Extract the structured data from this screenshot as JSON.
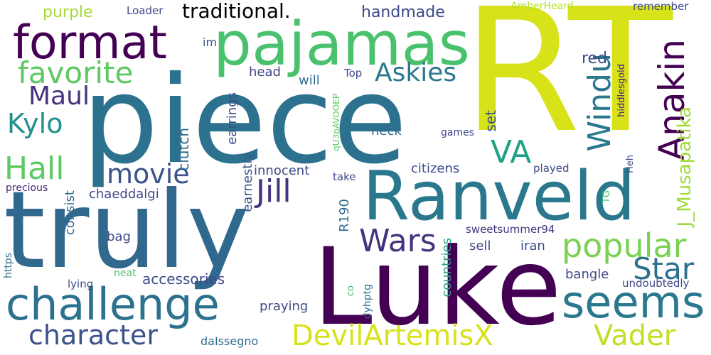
{
  "colors": {
    "background": "#ffffff",
    "palette": [
      "#440154",
      "#46337e",
      "#365c8d",
      "#277f8e",
      "#1fa187",
      "#4ac16d",
      "#a0da39",
      "#d8e219"
    ]
  },
  "words": [
    {
      "id": "RT",
      "text": "RT",
      "color": "#d8e219"
    },
    {
      "id": "piece",
      "text": "piece",
      "color": "#2c728e"
    },
    {
      "id": "truly",
      "text": "truly",
      "color": "#31688e"
    },
    {
      "id": "Luke",
      "text": "Luke",
      "color": "#440154"
    },
    {
      "id": "Ranveld",
      "text": "Ranveld",
      "color": "#2a788e"
    },
    {
      "id": "pajamas",
      "text": "pajamas",
      "color": "#4ac16d"
    },
    {
      "id": "format",
      "text": "format",
      "color": "#440154"
    },
    {
      "id": "challenge",
      "text": "challenge",
      "color": "#2c728e"
    },
    {
      "id": "seems",
      "text": "seems",
      "color": "#2a788e"
    },
    {
      "id": "favorite",
      "text": "favorite",
      "color": "#5ec962"
    },
    {
      "id": "DevilArtemisX",
      "text": "DevilArtemisX",
      "color": "#d8e219"
    },
    {
      "id": "Vader",
      "text": "Vader",
      "color": "#c2df23"
    },
    {
      "id": "character",
      "text": "character",
      "color": "#3b528b"
    },
    {
      "id": "popular",
      "text": "popular",
      "color": "#7ad151"
    },
    {
      "id": "Star",
      "text": "Star",
      "color": "#2c728e"
    },
    {
      "id": "Anakin",
      "text": "Anakin",
      "color": "#440154"
    },
    {
      "id": "Windu",
      "text": "Windu",
      "color": "#2a788e"
    },
    {
      "id": "Wars",
      "text": "Wars",
      "color": "#46337e"
    },
    {
      "id": "Jill",
      "text": "Jill",
      "color": "#46337e"
    },
    {
      "id": "VA",
      "text": "VA",
      "color": "#1fa187"
    },
    {
      "id": "Askies",
      "text": "Askies",
      "color": "#2a788e"
    },
    {
      "id": "Hall",
      "text": "Hall",
      "color": "#5ec962"
    },
    {
      "id": "movie",
      "text": "movie",
      "color": "#3b528b"
    },
    {
      "id": "Maul",
      "text": "Maul",
      "color": "#46337e"
    },
    {
      "id": "Kylo",
      "text": "Kylo",
      "color": "#21918c"
    },
    {
      "id": "J_Musapatika",
      "text": "J_Musapatika",
      "color": "#a0da39"
    },
    {
      "id": "traditional",
      "text": "traditional.",
      "color": "#3ba37c"
    },
    {
      "id": "handmade",
      "text": "handmade",
      "color": "#3e4a89"
    },
    {
      "id": "purple",
      "text": "purple",
      "color": "#a5db36"
    },
    {
      "id": "red",
      "text": "red",
      "color": "#3e4a89"
    },
    {
      "id": "Loader",
      "text": "Loader",
      "color": "#3e4a89"
    },
    {
      "id": "AmberHeard",
      "text": "AmberHeard",
      "color": "#b5de2b"
    },
    {
      "id": "remember",
      "text": "remember",
      "color": "#3e4a89"
    },
    {
      "id": "im",
      "text": "im",
      "color": "#3b528b"
    },
    {
      "id": "head",
      "text": "head",
      "color": "#414487"
    },
    {
      "id": "will",
      "text": "will",
      "color": "#2f6c8e"
    },
    {
      "id": "Top",
      "text": "Top",
      "color": "#3e4a89"
    },
    {
      "id": "hiddlesgold",
      "text": "hiddlesgold",
      "color": "#482173"
    },
    {
      "id": "neck",
      "text": "neck",
      "color": "#2f6c8e"
    },
    {
      "id": "set",
      "text": "set",
      "color": "#3b528b"
    },
    {
      "id": "qU3pAVOOEP",
      "text": "qU3pAVOOEP",
      "color": "#5ec962"
    },
    {
      "id": "games",
      "text": "games",
      "color": "#3e4a89"
    },
    {
      "id": "earrings",
      "text": "earrings",
      "color": "#3e4a89"
    },
    {
      "id": "clutch",
      "text": "clutch",
      "color": "#2f6c8e"
    },
    {
      "id": "earnestly",
      "text": "earnestly",
      "color": "#3b528b"
    },
    {
      "id": "innocent",
      "text": "innocent",
      "color": "#3e4a89"
    },
    {
      "id": "citizens",
      "text": "citizens",
      "color": "#3e4a89"
    },
    {
      "id": "take",
      "text": "take",
      "color": "#3e4a89"
    },
    {
      "id": "played",
      "text": "played",
      "color": "#3e4a89"
    },
    {
      "id": "Heh",
      "text": "Heh",
      "color": "#3e4a89"
    },
    {
      "id": "TG",
      "text": "TG",
      "color": "#3fbc73"
    },
    {
      "id": "precious",
      "text": "precious",
      "color": "#481f70"
    },
    {
      "id": "chaeddalgi",
      "text": "chaeddalgi",
      "color": "#3e4a89"
    },
    {
      "id": "consist",
      "text": "consist",
      "color": "#2f6c8e"
    },
    {
      "id": "R190",
      "text": "R190",
      "color": "#2f6c8e"
    },
    {
      "id": "sell",
      "text": "sell",
      "color": "#3e4a89"
    },
    {
      "id": "iran",
      "text": "iran",
      "color": "#3e4a89"
    },
    {
      "id": "bag",
      "text": "bag",
      "color": "#3e4a89"
    },
    {
      "id": "sweetsummer94",
      "text": "sweetsummer94",
      "color": "#46337e"
    },
    {
      "id": "https",
      "text": "https",
      "color": "#2f6c8e"
    },
    {
      "id": "accessories",
      "text": "accessories",
      "color": "#3e4a89"
    },
    {
      "id": "neat",
      "text": "neat",
      "color": "#4ac16d"
    },
    {
      "id": "countries",
      "text": "countries",
      "color": "#1fa187"
    },
    {
      "id": "bangle",
      "text": "bangle",
      "color": "#3e4a89"
    },
    {
      "id": "lying",
      "text": "lying",
      "color": "#3e4a89"
    },
    {
      "id": "undoubtedly",
      "text": "undoubtedly",
      "color": "#3e4a89"
    },
    {
      "id": "co",
      "text": "co",
      "color": "#3fbc73"
    },
    {
      "id": "dyhptg",
      "text": "dyhptg",
      "color": "#2f6c8e"
    },
    {
      "id": "praying",
      "text": "praying",
      "color": "#3e4a89"
    },
    {
      "id": "daIssegno",
      "text": "daIssegno",
      "color": "#2f6c8e"
    }
  ]
}
